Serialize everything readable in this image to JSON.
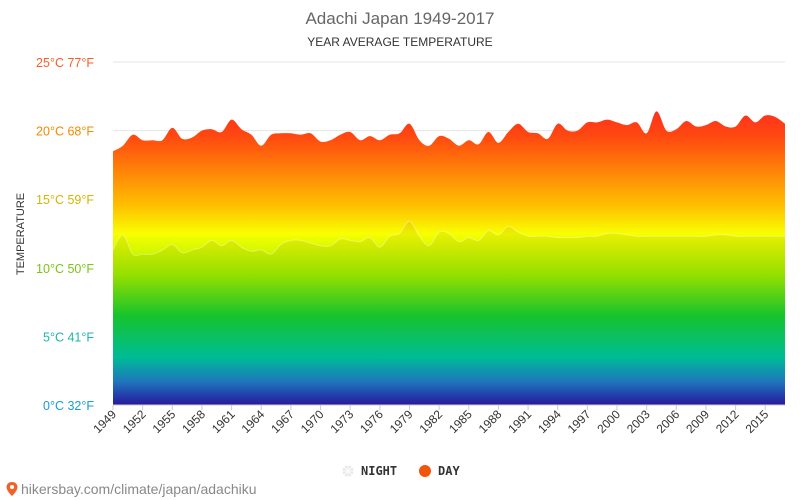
{
  "chart_data": {
    "type": "area",
    "title": "Adachi Japan 1949-2017",
    "subtitle": "YEAR AVERAGE TEMPERATURE",
    "ylabel": "TEMPERATURE",
    "ylim": [
      0,
      25
    ],
    "y_ticks": [
      {
        "value": 0,
        "label": "0°C 32°F",
        "color": "#1a9ad6"
      },
      {
        "value": 5,
        "label": "5°C 41°F",
        "color": "#1fb6a8"
      },
      {
        "value": 10,
        "label": "10°C 50°F",
        "color": "#7cc512"
      },
      {
        "value": 15,
        "label": "15°C 59°F",
        "color": "#d6b400"
      },
      {
        "value": 20,
        "label": "20°C 68°F",
        "color": "#f08a00"
      },
      {
        "value": 25,
        "label": "25°C 77°F",
        "color": "#f2612a"
      }
    ],
    "x_tick_labels": [
      "1949",
      "1952",
      "1955",
      "1958",
      "1961",
      "1964",
      "1967",
      "1970",
      "1973",
      "1976",
      "1979",
      "1982",
      "1985",
      "1988",
      "1991",
      "1994",
      "1997",
      "2000",
      "2003",
      "2006",
      "2009",
      "2012",
      "2015"
    ],
    "x": [
      1949,
      1950,
      1951,
      1952,
      1953,
      1954,
      1955,
      1956,
      1957,
      1958,
      1959,
      1960,
      1961,
      1962,
      1963,
      1964,
      1965,
      1966,
      1967,
      1968,
      1969,
      1970,
      1971,
      1972,
      1973,
      1974,
      1975,
      1976,
      1977,
      1978,
      1979,
      1980,
      1981,
      1982,
      1983,
      1984,
      1985,
      1986,
      1987,
      1988,
      1989,
      1990,
      1991,
      1992,
      1993,
      1994,
      1995,
      1996,
      1997,
      1998,
      1999,
      2000,
      2001,
      2002,
      2003,
      2004,
      2005,
      2006,
      2007,
      2008,
      2009,
      2010,
      2011,
      2012,
      2013,
      2014,
      2015,
      2016,
      2017
    ],
    "series": [
      {
        "name": "DAY",
        "color": "#f2540c",
        "values": [
          18.5,
          18.9,
          19.7,
          19.3,
          19.3,
          19.3,
          20.2,
          19.4,
          19.5,
          20.0,
          20.1,
          19.9,
          20.8,
          20.1,
          19.7,
          18.9,
          19.7,
          19.8,
          19.8,
          19.7,
          19.8,
          19.2,
          19.3,
          19.7,
          19.9,
          19.3,
          19.6,
          19.3,
          19.7,
          19.8,
          20.5,
          19.3,
          18.9,
          19.6,
          19.4,
          18.9,
          19.3,
          19.0,
          19.9,
          19.1,
          19.9,
          20.5,
          19.9,
          19.8,
          19.4,
          20.5,
          20.0,
          20.0,
          20.6,
          20.6,
          20.8,
          20.6,
          20.4,
          20.6,
          19.8,
          21.4,
          20.0,
          20.1,
          20.7,
          20.3,
          20.4,
          20.7,
          20.3,
          20.3,
          21.1,
          20.6,
          21.1,
          21.0,
          20.5
        ]
      },
      {
        "name": "NIGHT",
        "color": "#e8e8e8",
        "values": [
          11.3,
          12.4,
          11.0,
          11.0,
          11.0,
          11.3,
          11.7,
          11.1,
          11.3,
          11.5,
          12.0,
          11.6,
          12.0,
          11.5,
          11.2,
          11.3,
          11.0,
          11.7,
          12.0,
          12.0,
          11.8,
          11.6,
          11.6,
          12.1,
          12.0,
          11.9,
          12.2,
          11.5,
          12.3,
          12.5,
          13.4,
          12.3,
          11.6,
          12.6,
          12.5,
          11.9,
          12.2,
          12.0,
          12.7,
          12.4,
          13.0,
          12.6,
          12.3,
          12.3,
          12.3,
          12.2,
          12.2,
          12.2,
          12.3,
          12.3,
          12.5,
          12.5,
          12.4,
          12.3,
          12.3,
          12.3,
          12.3,
          12.3,
          12.3,
          12.3,
          12.3,
          12.4,
          12.4,
          12.3,
          12.3,
          12.3,
          12.3,
          12.3,
          12.3
        ]
      }
    ],
    "legend": {
      "position": "bottom-center",
      "items": [
        "NIGHT",
        "DAY"
      ]
    },
    "grid": true
  },
  "watermark": {
    "text": "hikersbay.com/climate/japan/adachiku",
    "icon": "map-pin-icon",
    "icon_color": "#f2612a"
  }
}
